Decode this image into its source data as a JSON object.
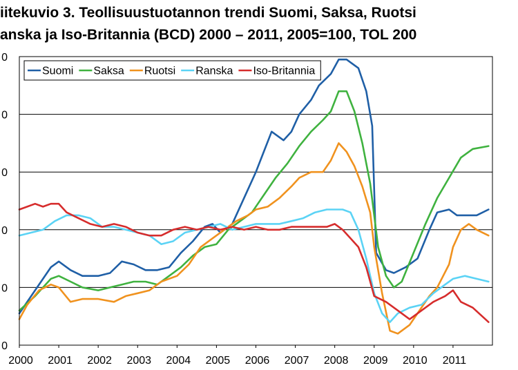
{
  "title": {
    "line1": "iitekuvio 3. Teollisuustuotannon trendi Suomi, Saksa, Ruotsi",
    "line2": "anska ja Iso-Britannia (BCD) 2000 – 2011, 2005=100, TOL 200"
  },
  "chart_data": {
    "type": "line",
    "title": "Teollisuustuotannon trendi Suomi, Saksa, Ruotsi, Ranska ja Iso-Britannia (BCD) 2000 – 2011, 2005=100, TOL 200",
    "xlabel": "",
    "ylabel": "",
    "x_tick_labels": [
      "2000",
      "2001",
      "2002",
      "2003",
      "2004",
      "2005",
      "2006",
      "2007",
      "2008",
      "2009",
      "2010",
      "2011"
    ],
    "y_tick_labels": [
      "0",
      "0",
      "0",
      "0",
      "0",
      "0"
    ],
    "xlim": [
      2000,
      2012
    ],
    "ylim": [
      80,
      130
    ],
    "grid": "horizontal",
    "legend_position": "top-left",
    "series": [
      {
        "name": "Suomi",
        "color": "#1f5fa6",
        "x": [
          2000.0,
          2000.4,
          2000.8,
          2001.0,
          2001.3,
          2001.6,
          2002.0,
          2002.3,
          2002.6,
          2002.9,
          2003.2,
          2003.5,
          2003.8,
          2004.1,
          2004.4,
          2004.7,
          2004.9,
          2005.1,
          2005.4,
          2005.7,
          2006.0,
          2006.2,
          2006.4,
          2006.7,
          2006.9,
          2007.1,
          2007.4,
          2007.6,
          2007.9,
          2008.1,
          2008.3,
          2008.6,
          2008.8,
          2008.95,
          2009.05,
          2009.3,
          2009.5,
          2009.8,
          2010.1,
          2010.4,
          2010.6,
          2010.9,
          2011.1,
          2011.3,
          2011.6,
          2011.9
        ],
        "values": [
          85.5,
          89.5,
          93.5,
          94.5,
          93.0,
          92.0,
          92.0,
          92.5,
          94.5,
          94.0,
          93.0,
          93.0,
          93.5,
          96.0,
          98.0,
          100.5,
          101.0,
          99.5,
          101.0,
          105.5,
          110.0,
          113.5,
          117.0,
          115.5,
          117.0,
          120.0,
          122.5,
          125.0,
          127.0,
          129.5,
          129.5,
          128.0,
          124.0,
          118.0,
          96.0,
          93.0,
          92.5,
          93.5,
          95.0,
          100.0,
          103.0,
          103.5,
          102.5,
          102.5,
          102.5,
          103.5
        ]
      },
      {
        "name": "Saksa",
        "color": "#3fb23f",
        "x": [
          2000.0,
          2000.4,
          2000.8,
          2001.0,
          2001.3,
          2001.6,
          2002.0,
          2002.3,
          2002.6,
          2002.9,
          2003.2,
          2003.5,
          2003.8,
          2004.1,
          2004.4,
          2004.7,
          2005.0,
          2005.3,
          2005.6,
          2005.9,
          2006.2,
          2006.5,
          2006.8,
          2007.1,
          2007.4,
          2007.7,
          2007.9,
          2008.1,
          2008.3,
          2008.5,
          2008.7,
          2008.9,
          2009.1,
          2009.3,
          2009.5,
          2009.7,
          2010.0,
          2010.3,
          2010.6,
          2010.9,
          2011.2,
          2011.5,
          2011.9
        ],
        "values": [
          86.0,
          88.5,
          91.5,
          92.0,
          91.0,
          90.0,
          89.5,
          90.0,
          90.5,
          91.0,
          91.0,
          90.5,
          92.0,
          93.5,
          95.5,
          97.0,
          97.5,
          100.0,
          101.5,
          103.0,
          106.0,
          109.0,
          111.5,
          114.5,
          117.0,
          119.0,
          120.5,
          124.0,
          124.0,
          120.5,
          115.0,
          108.0,
          97.0,
          92.0,
          90.0,
          91.0,
          96.0,
          101.0,
          105.5,
          109.0,
          112.5,
          114.0,
          114.5
        ]
      },
      {
        "name": "Ruotsi",
        "color": "#f0921e",
        "x": [
          2000.0,
          2000.2,
          2000.5,
          2000.8,
          2001.0,
          2001.3,
          2001.6,
          2002.0,
          2002.4,
          2002.7,
          2003.0,
          2003.3,
          2003.6,
          2004.0,
          2004.3,
          2004.6,
          2004.9,
          2005.2,
          2005.5,
          2005.8,
          2006.0,
          2006.3,
          2006.6,
          2006.9,
          2007.1,
          2007.4,
          2007.7,
          2007.9,
          2008.0,
          2008.1,
          2008.3,
          2008.5,
          2008.7,
          2008.9,
          2009.0,
          2009.2,
          2009.4,
          2009.6,
          2009.9,
          2010.1,
          2010.4,
          2010.6,
          2010.9,
          2011.0,
          2011.2,
          2011.4,
          2011.6,
          2011.9
        ],
        "values": [
          84.5,
          87.0,
          89.5,
          90.5,
          90.0,
          87.5,
          88.0,
          88.0,
          87.5,
          88.5,
          89.0,
          89.5,
          91.0,
          92.0,
          94.0,
          97.0,
          98.5,
          100.0,
          101.5,
          102.5,
          103.5,
          104.0,
          105.5,
          107.5,
          109.0,
          110.0,
          110.0,
          112.0,
          113.5,
          115.0,
          113.5,
          111.0,
          107.5,
          103.0,
          97.0,
          89.0,
          82.5,
          82.0,
          83.5,
          85.5,
          88.5,
          90.0,
          94.0,
          97.0,
          100.0,
          101.0,
          100.0,
          99.0
        ]
      },
      {
        "name": "Ranska",
        "color": "#5bd3f5",
        "x": [
          2000.0,
          2000.3,
          2000.6,
          2000.9,
          2001.2,
          2001.5,
          2001.8,
          2002.1,
          2002.4,
          2002.7,
          2003.0,
          2003.3,
          2003.6,
          2003.9,
          2004.2,
          2004.5,
          2004.8,
          2005.1,
          2005.4,
          2005.7,
          2006.0,
          2006.3,
          2006.6,
          2006.9,
          2007.2,
          2007.5,
          2007.8,
          2008.0,
          2008.2,
          2008.4,
          2008.6,
          2008.8,
          2009.0,
          2009.2,
          2009.4,
          2009.6,
          2009.9,
          2010.2,
          2010.5,
          2010.8,
          2011.0,
          2011.3,
          2011.6,
          2011.9
        ],
        "values": [
          99.0,
          99.5,
          100.0,
          101.5,
          102.5,
          102.5,
          102.0,
          100.5,
          100.5,
          100.0,
          99.5,
          99.0,
          97.5,
          98.0,
          99.5,
          100.0,
          100.5,
          101.0,
          100.0,
          100.5,
          101.0,
          101.0,
          101.0,
          101.5,
          102.0,
          103.0,
          103.5,
          103.5,
          103.5,
          103.0,
          100.0,
          95.0,
          89.0,
          85.5,
          84.0,
          85.5,
          86.5,
          87.0,
          89.0,
          90.5,
          91.5,
          92.0,
          91.5,
          91.0
        ]
      },
      {
        "name": "Iso-Britannia",
        "color": "#d62c2c",
        "x": [
          2000.0,
          2000.2,
          2000.4,
          2000.6,
          2000.8,
          2001.0,
          2001.2,
          2001.5,
          2001.8,
          2002.1,
          2002.4,
          2002.7,
          2003.0,
          2003.3,
          2003.6,
          2003.9,
          2004.2,
          2004.5,
          2004.8,
          2005.1,
          2005.4,
          2005.7,
          2006.0,
          2006.3,
          2006.6,
          2006.9,
          2007.2,
          2007.5,
          2007.8,
          2008.0,
          2008.2,
          2008.4,
          2008.6,
          2008.8,
          2009.0,
          2009.3,
          2009.6,
          2009.9,
          2010.2,
          2010.5,
          2010.8,
          2011.0,
          2011.2,
          2011.5,
          2011.9
        ],
        "values": [
          103.5,
          104.0,
          104.5,
          104.0,
          104.5,
          104.5,
          103.0,
          102.0,
          101.0,
          100.5,
          101.0,
          100.5,
          99.5,
          99.0,
          99.0,
          100.0,
          100.5,
          100.0,
          100.5,
          100.0,
          100.5,
          100.0,
          100.5,
          100.0,
          100.0,
          100.5,
          100.5,
          100.5,
          100.5,
          101.0,
          100.0,
          98.5,
          97.0,
          93.5,
          88.5,
          87.5,
          86.0,
          84.5,
          86.0,
          87.5,
          88.5,
          89.5,
          87.5,
          86.5,
          84.0
        ]
      }
    ]
  }
}
